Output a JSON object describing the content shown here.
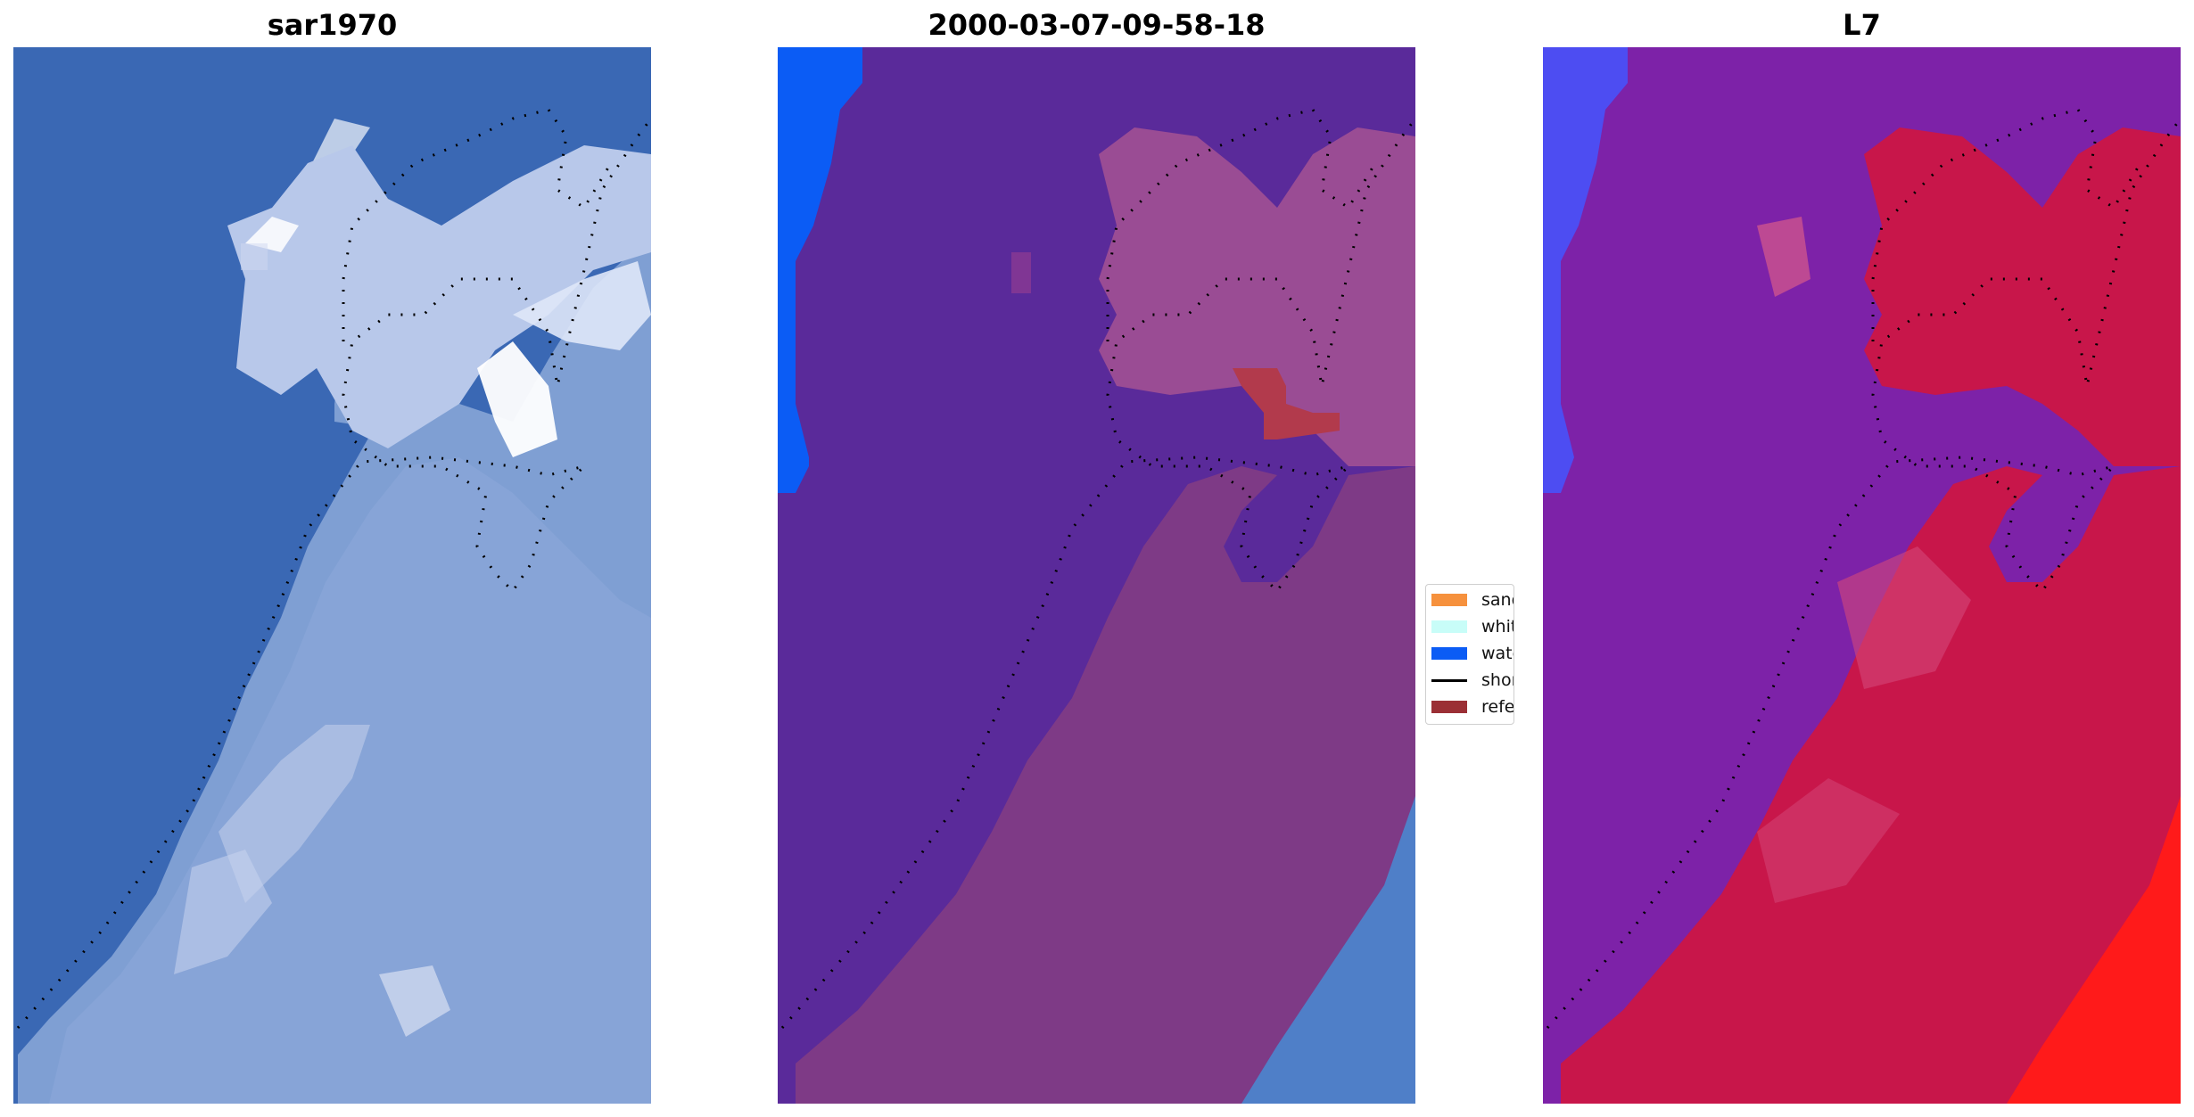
{
  "panels": [
    {
      "title": "sar1970",
      "base_color": "#3a68b4"
    },
    {
      "title": "2000-03-07-09-58-18",
      "base_color": "#5a2a9a"
    },
    {
      "title": "L7",
      "base_color": "#7d22a8"
    }
  ],
  "legend": {
    "items": [
      {
        "label": "sand",
        "color": "#f6913d",
        "kind": "patch"
      },
      {
        "label": "whitewater",
        "color": "#c8fdf8",
        "kind": "patch"
      },
      {
        "label": "water",
        "color": "#0b5cf5",
        "kind": "patch"
      },
      {
        "label": "shoreline",
        "color": "#000000",
        "kind": "line"
      },
      {
        "label": "reference",
        "color": "#9b2f35",
        "kind": "patch"
      }
    ]
  },
  "colors": {
    "rgb_water": "#3a68b4",
    "rgb_sand": "#9fb4dc",
    "class_water": "#0b5cf5",
    "class_other": "#5a2a9a",
    "class_land": "#7e3a86",
    "class_reference": "#b23a4c",
    "index_low": "#7d22a8",
    "index_high": "#c8164a",
    "index_max": "#ff1a1a",
    "index_water": "#4d4df2"
  }
}
